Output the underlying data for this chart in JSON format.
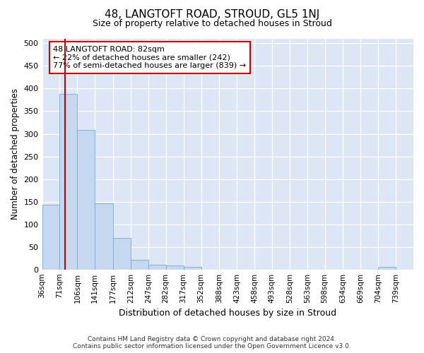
{
  "title": "48, LANGTOFT ROAD, STROUD, GL5 1NJ",
  "subtitle": "Size of property relative to detached houses in Stroud",
  "xlabel": "Distribution of detached houses by size in Stroud",
  "ylabel": "Number of detached properties",
  "bar_edges": [
    36,
    71,
    106,
    141,
    177,
    212,
    247,
    282,
    317,
    352,
    388,
    423,
    458,
    493,
    528,
    563,
    598,
    634,
    669,
    704,
    739
  ],
  "bar_heights": [
    143,
    388,
    308,
    147,
    70,
    22,
    10,
    9,
    5,
    0,
    0,
    0,
    0,
    0,
    0,
    0,
    0,
    0,
    0,
    5
  ],
  "bar_color": "#c5d8f0",
  "bar_edgecolor": "#7aaad0",
  "property_size": 82,
  "vline_color": "#cc0000",
  "ylim": [
    0,
    510
  ],
  "yticks": [
    0,
    50,
    100,
    150,
    200,
    250,
    300,
    350,
    400,
    450,
    500
  ],
  "annotation_lines": [
    "48 LANGTOFT ROAD: 82sqm",
    "← 22% of detached houses are smaller (242)",
    "77% of semi-detached houses are larger (839) →"
  ],
  "annotation_box_facecolor": "#ffffff",
  "annotation_box_edgecolor": "#cc0000",
  "footer_line1": "Contains HM Land Registry data © Crown copyright and database right 2024.",
  "footer_line2": "Contains public sector information licensed under the Open Government Licence v3.0.",
  "bg_color": "#ffffff",
  "plot_bg_color": "#dce6f5"
}
